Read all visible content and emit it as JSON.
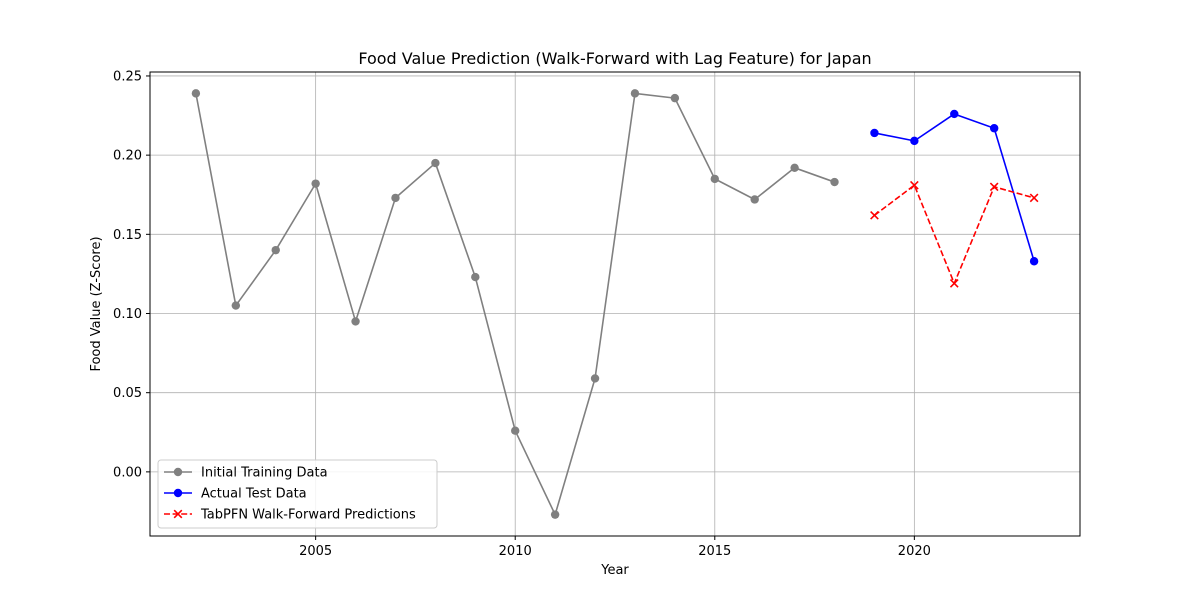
{
  "chart_data": {
    "type": "line",
    "title": "Food Value Prediction (Walk-Forward with Lag Feature) for Japan",
    "xlabel": "Year",
    "ylabel": "Food Value (Z-Score)",
    "xlim": [
      2000.85,
      2024.15
    ],
    "ylim": [
      -0.0405,
      0.2525
    ],
    "xticks": [
      2005,
      2010,
      2015,
      2020
    ],
    "xtick_labels": [
      "2005",
      "2010",
      "2015",
      "2020"
    ],
    "yticks": [
      0.0,
      0.05,
      0.1,
      0.15,
      0.2,
      0.25
    ],
    "ytick_labels": [
      "0.00",
      "0.05",
      "0.10",
      "0.15",
      "0.20",
      "0.25"
    ],
    "grid": true,
    "legend_position": "lower-left",
    "series": [
      {
        "name": "Initial Training Data",
        "color": "#808080",
        "style": "solid",
        "marker": "circle",
        "x": [
          2002,
          2003,
          2004,
          2005,
          2006,
          2007,
          2008,
          2009,
          2010,
          2011,
          2012,
          2013,
          2014,
          2015,
          2016,
          2017,
          2018
        ],
        "y": [
          0.239,
          0.105,
          0.14,
          0.182,
          0.095,
          0.173,
          0.195,
          0.123,
          0.026,
          -0.027,
          0.059,
          0.239,
          0.236,
          0.185,
          0.172,
          0.192,
          0.183
        ]
      },
      {
        "name": "Actual Test Data",
        "color": "#0000ff",
        "style": "solid",
        "marker": "circle",
        "x": [
          2019,
          2020,
          2021,
          2022,
          2023
        ],
        "y": [
          0.214,
          0.209,
          0.226,
          0.217,
          0.133
        ]
      },
      {
        "name": "TabPFN Walk-Forward Predictions",
        "color": "#ff0000",
        "style": "dashed",
        "marker": "x",
        "x": [
          2019,
          2020,
          2021,
          2022,
          2023
        ],
        "y": [
          0.162,
          0.181,
          0.119,
          0.18,
          0.173
        ]
      }
    ]
  }
}
